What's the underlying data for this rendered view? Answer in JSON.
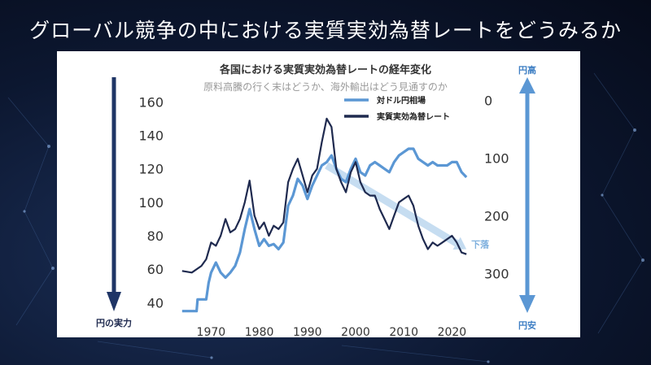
{
  "slide": {
    "title": "グローバル競争の中における実質実効為替レートをどうみるか"
  },
  "colors": {
    "background": "#0c1730",
    "series_nominal": "#5b97d4",
    "series_reer": "#1f2a4f",
    "trend_arrow": "#bcd7ee",
    "side_arrow_left": "#1f3566",
    "side_arrow_right": "#5b97d4"
  },
  "annotations": {
    "left_arrow_label": "円の実力",
    "right_top_label": "円高",
    "right_bottom_label": "円安",
    "trend_label": "下落"
  },
  "chart_data": {
    "type": "line",
    "title": "各国における実質実効為替レートの経年変化",
    "subtitle": "原料高騰の行く末はどうか、海外輸出はどう見通すのか",
    "xlabel": "",
    "ylabel": "",
    "xlim": [
      1962,
      2025
    ],
    "x_ticks": [
      1970,
      1980,
      1990,
      2000,
      2010,
      2020
    ],
    "y_left": {
      "ticks": [
        40,
        60,
        80,
        100,
        120,
        140,
        160
      ],
      "lim": [
        30,
        165
      ]
    },
    "y_right": {
      "ticks": [
        0,
        100,
        200,
        300
      ],
      "lim": [
        -12,
        380
      ],
      "inverted": true
    },
    "legend": {
      "placement": "top-center"
    },
    "grid": false,
    "series": [
      {
        "name": "対ドル円相場",
        "axis": "left",
        "points": [
          [
            1964,
            35
          ],
          [
            1966,
            35
          ],
          [
            1967,
            35
          ],
          [
            1967.2,
            42
          ],
          [
            1968,
            42
          ],
          [
            1969,
            42
          ],
          [
            1969.5,
            52
          ],
          [
            1970,
            58
          ],
          [
            1971,
            64
          ],
          [
            1972,
            58
          ],
          [
            1973,
            55
          ],
          [
            1974,
            58
          ],
          [
            1975,
            62
          ],
          [
            1976,
            70
          ],
          [
            1977,
            84
          ],
          [
            1978,
            96
          ],
          [
            1979,
            84
          ],
          [
            1980,
            74
          ],
          [
            1981,
            78
          ],
          [
            1982,
            74
          ],
          [
            1983,
            75
          ],
          [
            1984,
            72
          ],
          [
            1985,
            76
          ],
          [
            1986,
            98
          ],
          [
            1987,
            104
          ],
          [
            1988,
            114
          ],
          [
            1989,
            110
          ],
          [
            1990,
            102
          ],
          [
            1991,
            110
          ],
          [
            1992,
            116
          ],
          [
            1993,
            122
          ],
          [
            1994,
            124
          ],
          [
            1995,
            128
          ],
          [
            1996,
            120
          ],
          [
            1997,
            114
          ],
          [
            1998,
            112
          ],
          [
            1999,
            120
          ],
          [
            2000,
            126
          ],
          [
            2001,
            118
          ],
          [
            2002,
            116
          ],
          [
            2003,
            122
          ],
          [
            2004,
            124
          ],
          [
            2005,
            122
          ],
          [
            2006,
            120
          ],
          [
            2007,
            118
          ],
          [
            2008,
            124
          ],
          [
            2009,
            128
          ],
          [
            2010,
            130
          ],
          [
            2011,
            132
          ],
          [
            2012,
            132
          ],
          [
            2013,
            126
          ],
          [
            2014,
            124
          ],
          [
            2015,
            122
          ],
          [
            2016,
            124
          ],
          [
            2017,
            122
          ],
          [
            2018,
            122
          ],
          [
            2019,
            122
          ],
          [
            2020,
            124
          ],
          [
            2021,
            124
          ],
          [
            2022,
            118
          ],
          [
            2023,
            115
          ]
        ]
      },
      {
        "name": "実質実効為替レート",
        "axis": "left",
        "points": [
          [
            1964,
            59
          ],
          [
            1966,
            58
          ],
          [
            1968,
            62
          ],
          [
            1969,
            66
          ],
          [
            1970,
            76
          ],
          [
            1971,
            74
          ],
          [
            1972,
            80
          ],
          [
            1973,
            90
          ],
          [
            1974,
            82
          ],
          [
            1975,
            84
          ],
          [
            1976,
            90
          ],
          [
            1977,
            100
          ],
          [
            1978,
            113
          ],
          [
            1979,
            92
          ],
          [
            1980,
            84
          ],
          [
            1981,
            88
          ],
          [
            1982,
            80
          ],
          [
            1983,
            86
          ],
          [
            1984,
            84
          ],
          [
            1985,
            88
          ],
          [
            1986,
            112
          ],
          [
            1987,
            120
          ],
          [
            1988,
            126
          ],
          [
            1989,
            116
          ],
          [
            1990,
            106
          ],
          [
            1991,
            116
          ],
          [
            1992,
            120
          ],
          [
            1993,
            136
          ],
          [
            1994,
            150
          ],
          [
            1995,
            145
          ],
          [
            1996,
            120
          ],
          [
            1997,
            112
          ],
          [
            1998,
            106
          ],
          [
            1999,
            118
          ],
          [
            2000,
            124
          ],
          [
            2001,
            112
          ],
          [
            2002,
            106
          ],
          [
            2003,
            104
          ],
          [
            2004,
            104
          ],
          [
            2005,
            96
          ],
          [
            2006,
            90
          ],
          [
            2007,
            84
          ],
          [
            2008,
            92
          ],
          [
            2009,
            100
          ],
          [
            2010,
            102
          ],
          [
            2011,
            104
          ],
          [
            2012,
            98
          ],
          [
            2013,
            86
          ],
          [
            2014,
            78
          ],
          [
            2015,
            72
          ],
          [
            2016,
            76
          ],
          [
            2017,
            74
          ],
          [
            2018,
            76
          ],
          [
            2019,
            78
          ],
          [
            2020,
            80
          ],
          [
            2021,
            76
          ],
          [
            2022,
            70
          ],
          [
            2023,
            69
          ]
        ]
      }
    ],
    "trend_arrow": {
      "from": [
        1994,
        122
      ],
      "to": [
        2023,
        72
      ]
    }
  }
}
